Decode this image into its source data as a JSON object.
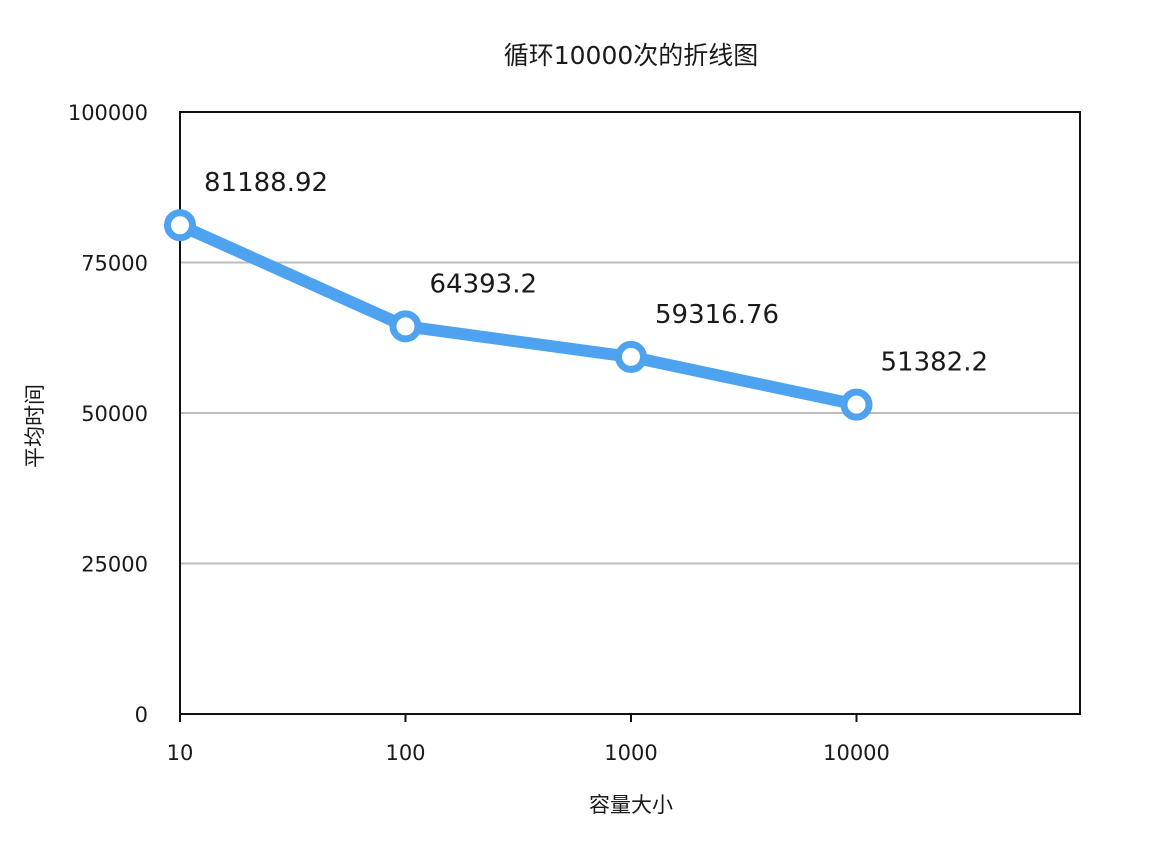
{
  "chart_data": {
    "type": "line",
    "title": "循环10000次的折线图",
    "xlabel": "容量大小",
    "ylabel": "平均时间",
    "categories": [
      "10",
      "100",
      "1000",
      "10000"
    ],
    "series": [
      {
        "values": [
          81188.92,
          64393.2,
          59316.76,
          51382.2
        ]
      }
    ],
    "data_labels": [
      "81188.92",
      "64393.2",
      "59316.76",
      "51382.2"
    ],
    "ylim": [
      0,
      100000
    ],
    "yticks": [
      "0",
      "25000",
      "50000",
      "75000",
      "100000"
    ],
    "ytick_values": [
      0,
      25000,
      50000,
      75000,
      100000
    ],
    "grid": true,
    "legend": "none",
    "line_color": "#4da3f0",
    "grid_color": "#bdbdbd",
    "axis_color": "#111111"
  }
}
